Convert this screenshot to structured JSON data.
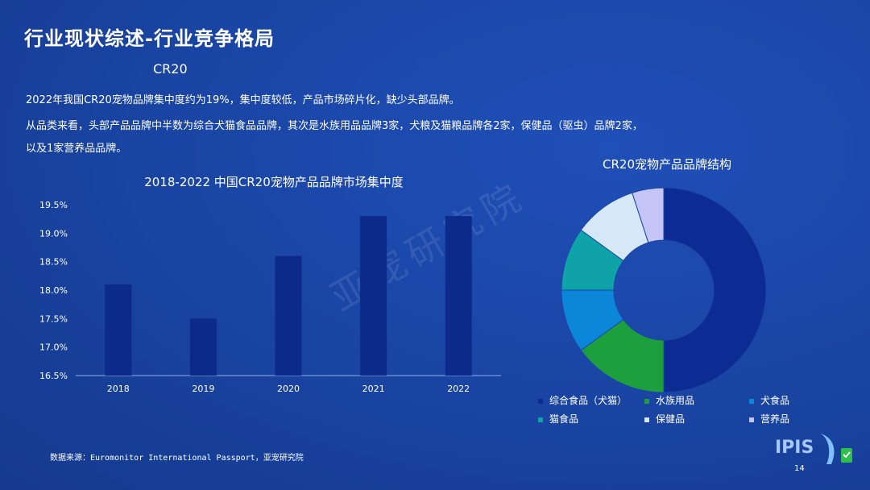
{
  "slide": {
    "title": "行业现状综述-行业竞争格局",
    "subtitle": "CR20",
    "para1": "2022年我国CR20宠物品牌集中度约为19%，集中度较低，产品市场碎片化，缺少头部品牌。",
    "para2": "从品类来看，头部产品品牌中半数为综合犬猫食品品牌，其次是水族用品品牌3家，犬粮及猫粮品牌各2家，保健品（驱虫）品牌2家，",
    "para3": "以及1家营养品品牌。",
    "watermark": "亚宠研究院",
    "source": "数据来源：Euromonitor International Passport，亚宠研究院",
    "page_number": "14",
    "logo_text": "IPIS"
  },
  "chart_data": [
    {
      "type": "bar",
      "title": "2018-2022 中国CR20宠物产品品牌市场集中度",
      "categories": [
        "2018",
        "2019",
        "2020",
        "2021",
        "2022"
      ],
      "values": [
        18.1,
        17.5,
        18.6,
        19.3,
        19.3
      ],
      "ylim": [
        16.5,
        19.5
      ],
      "yticks": [
        "19.5%",
        "19.0%",
        "18.5%",
        "18.0%",
        "17.5%",
        "17.0%",
        "16.5%"
      ],
      "color": "#0b2a8a"
    },
    {
      "type": "pie",
      "title": "CR20宠物产品品牌结构",
      "labels": [
        "综合食品（犬猫）",
        "水族用品",
        "犬食品",
        "猫食品",
        "保健品",
        "营养品"
      ],
      "values": [
        10,
        3,
        2,
        2,
        2,
        1
      ],
      "colors": [
        "#0d2c93",
        "#1d9f3e",
        "#0b86d8",
        "#0fa2a8",
        "#d6e8f7",
        "#c4c4f7"
      ],
      "legend_position": "bottom"
    }
  ]
}
